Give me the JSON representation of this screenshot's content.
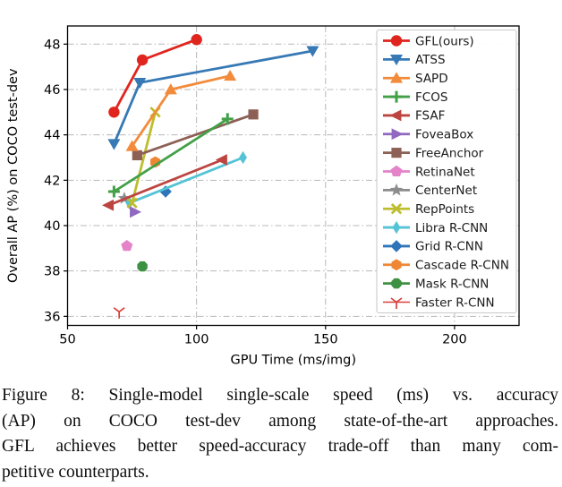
{
  "figure": {
    "caption_lines": [
      "Figure 8: Single-model single-scale speed (ms) vs. accuracy",
      "(AP) on COCO test-dev among state-of-the-art approaches.",
      "GFL achieves better speed-accuracy trade-off than many com-",
      "petitive counterparts."
    ],
    "caption_text": "Figure 8: Single-model single-scale speed (ms) vs. accuracy (AP) on COCO test-dev among state-of-the-art approaches. GFL achieves better speed-accuracy trade-off than many competitive counterparts."
  },
  "chart_data": {
    "type": "scatter",
    "title": "",
    "xlabel": "GPU Time (ms/img)",
    "ylabel": "Overall AP (%) on COCO test-dev",
    "xlim": [
      50,
      225
    ],
    "ylim": [
      35.6,
      48.8
    ],
    "xticks": [
      50,
      100,
      150,
      200
    ],
    "yticks": [
      36,
      38,
      40,
      42,
      44,
      46,
      48
    ],
    "grid": "dash-dot",
    "grid_color": "#b8b8b8",
    "legend_position": "upper right",
    "series": [
      {
        "name": "GFL(ours)",
        "color": "#e0251f",
        "marker": "circle",
        "x": [
          68,
          79,
          100
        ],
        "y": [
          45.0,
          47.3,
          48.2
        ]
      },
      {
        "name": "ATSS",
        "color": "#3779b5",
        "marker": "triangle-down",
        "x": [
          68,
          78,
          145
        ],
        "y": [
          43.6,
          46.3,
          47.7
        ]
      },
      {
        "name": "SAPD",
        "color": "#f28b3b",
        "marker": "triangle-up",
        "x": [
          75,
          90,
          113
        ],
        "y": [
          43.5,
          46.0,
          46.6
        ]
      },
      {
        "name": "FCOS",
        "color": "#42a047",
        "marker": "plus",
        "x": [
          68,
          112
        ],
        "y": [
          41.5,
          44.7
        ]
      },
      {
        "name": "FSAF",
        "color": "#bc4540",
        "marker": "triangle-left",
        "x": [
          66,
          110
        ],
        "y": [
          40.9,
          42.9
        ]
      },
      {
        "name": "FoveaBox",
        "color": "#9068c0",
        "marker": "triangle-right",
        "x": [
          76
        ],
        "y": [
          40.6
        ]
      },
      {
        "name": "FreeAnchor",
        "color": "#8d6055",
        "marker": "square",
        "x": [
          77,
          122
        ],
        "y": [
          43.1,
          44.9
        ]
      },
      {
        "name": "RetinaNet",
        "color": "#e583c8",
        "marker": "pentagon",
        "x": [
          73
        ],
        "y": [
          39.1
        ]
      },
      {
        "name": "CenterNet",
        "color": "#8c8c8c",
        "marker": "star",
        "x": [
          72
        ],
        "y": [
          41.2
        ]
      },
      {
        "name": "RepPoints",
        "color": "#bdbd2e",
        "marker": "x",
        "x": [
          75,
          84
        ],
        "y": [
          41.0,
          45.0
        ]
      },
      {
        "name": "Libra R-CNN",
        "color": "#53c3d6",
        "marker": "thin-diamond",
        "x": [
          74,
          118
        ],
        "y": [
          41.0,
          43.0
        ]
      },
      {
        "name": "Grid R-CNN",
        "color": "#2f74b8",
        "marker": "diamond",
        "x": [
          88
        ],
        "y": [
          41.5
        ]
      },
      {
        "name": "Cascade R-CNN",
        "color": "#ef8634",
        "marker": "hexagon",
        "x": [
          84
        ],
        "y": [
          42.8
        ]
      },
      {
        "name": "Mask R-CNN",
        "color": "#3d9142",
        "marker": "octagon",
        "x": [
          79
        ],
        "y": [
          38.2
        ]
      },
      {
        "name": "Faster R-CNN",
        "color": "#d8403a",
        "marker": "tri-down-open",
        "x": [
          70
        ],
        "y": [
          36.2
        ],
        "thin": true
      }
    ]
  }
}
